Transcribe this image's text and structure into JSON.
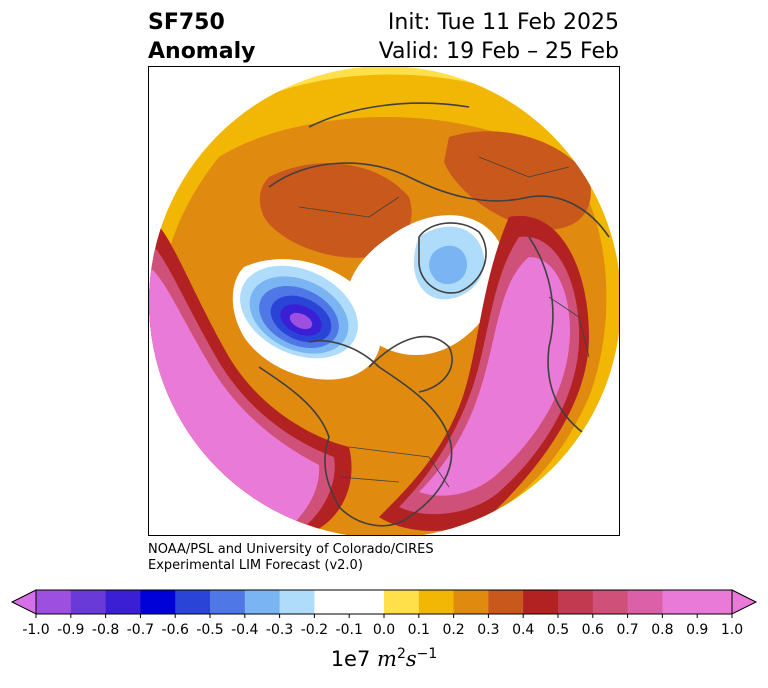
{
  "title": {
    "variable": "SF750",
    "subtitle": "Anomaly",
    "init": "Init: Tue 11 Feb 2025",
    "valid": "Valid: 19 Feb – 25 Feb"
  },
  "credit": {
    "line1": "NOAA/PSL and University of Colorado/CIRES",
    "line2": "Experimental LIM Forecast (v2.0)"
  },
  "colorbar": {
    "unit_prefix": "1e7",
    "unit_m": "m",
    "unit_m_exp": "2",
    "unit_s": "s",
    "unit_s_exp": "−1",
    "ticks": [
      "-1.0",
      "-0.9",
      "-0.8",
      "-0.7",
      "-0.6",
      "-0.5",
      "-0.4",
      "-0.3",
      "-0.2",
      "-0.1",
      "0.0",
      "0.1",
      "0.2",
      "0.3",
      "0.4",
      "0.5",
      "0.6",
      "0.7",
      "0.8",
      "0.9",
      "1.0"
    ],
    "colors": [
      "#9d4fe0",
      "#6a3ad8",
      "#3a1fd4",
      "#0000d8",
      "#2a44d8",
      "#4f78e6",
      "#7ab4f2",
      "#aedcfa",
      "#ffffff",
      "#ffffff",
      "#ffe04a",
      "#f2b705",
      "#e08a0f",
      "#c8581b",
      "#b22222",
      "#c23a50",
      "#cf5078",
      "#dc60a8",
      "#e97ad8",
      "#e97ad8"
    ],
    "extend_low": "#d66fe8",
    "extend_high": "#e97ad8"
  },
  "map": {
    "field_colors": {
      "pos1": "#ffe04a",
      "pos2": "#f2b705",
      "pos3": "#e08a0f",
      "pos4": "#c8581b",
      "pos5": "#b22222",
      "pos7": "#cf5078",
      "pos9": "#e97ad8",
      "neg2": "#aedcfa",
      "neg3": "#7ab4f2",
      "neg4": "#4f78e6",
      "neg5": "#2a44d8",
      "neg6": "#3a1fd4",
      "neg8": "#9d4fe0"
    }
  }
}
